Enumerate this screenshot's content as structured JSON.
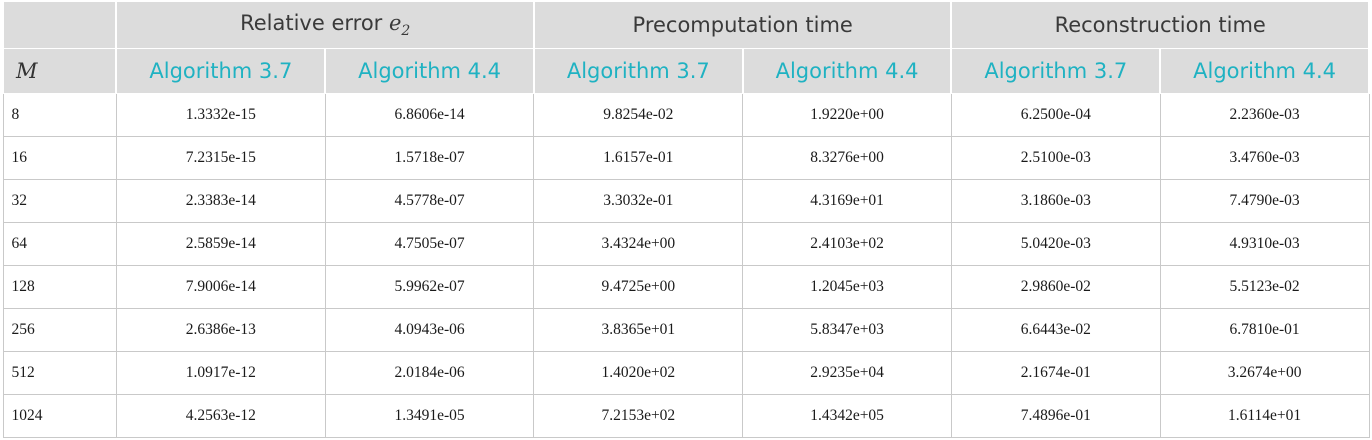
{
  "table": {
    "group_headers": {
      "relative_error_prefix": "Relative error",
      "relative_error_symbol": "e",
      "relative_error_subscript": "2",
      "precomputation": "Precomputation time",
      "reconstruction": "Reconstruction time"
    },
    "sub_headers": {
      "m": "M",
      "cols": [
        "Algorithm 3.7",
        "Algorithm 4.4",
        "Algorithm 3.7",
        "Algorithm 4.4",
        "Algorithm 3.7",
        "Algorithm 4.4"
      ]
    },
    "rows": [
      {
        "m": "8",
        "err_a37": "1.3332e-15",
        "err_a44": "6.8606e-14",
        "pre_a37": "9.8254e-02",
        "pre_a44": "1.9220e+00",
        "rec_a37": "6.2500e-04",
        "rec_a44": "2.2360e-03"
      },
      {
        "m": "16",
        "err_a37": "7.2315e-15",
        "err_a44": "1.5718e-07",
        "pre_a37": "1.6157e-01",
        "pre_a44": "8.3276e+00",
        "rec_a37": "2.5100e-03",
        "rec_a44": "3.4760e-03"
      },
      {
        "m": "32",
        "err_a37": "2.3383e-14",
        "err_a44": "4.5778e-07",
        "pre_a37": "3.3032e-01",
        "pre_a44": "4.3169e+01",
        "rec_a37": "3.1860e-03",
        "rec_a44": "7.4790e-03"
      },
      {
        "m": "64",
        "err_a37": "2.5859e-14",
        "err_a44": "4.7505e-07",
        "pre_a37": "3.4324e+00",
        "pre_a44": "2.4103e+02",
        "rec_a37": "5.0420e-03",
        "rec_a44": "4.9310e-03"
      },
      {
        "m": "128",
        "err_a37": "7.9006e-14",
        "err_a44": "5.9962e-07",
        "pre_a37": "9.4725e+00",
        "pre_a44": "1.2045e+03",
        "rec_a37": "2.9860e-02",
        "rec_a44": "5.5123e-02"
      },
      {
        "m": "256",
        "err_a37": "2.6386e-13",
        "err_a44": "4.0943e-06",
        "pre_a37": "3.8365e+01",
        "pre_a44": "5.8347e+03",
        "rec_a37": "6.6443e-02",
        "rec_a44": "6.7810e-01"
      },
      {
        "m": "512",
        "err_a37": "1.0917e-12",
        "err_a44": "2.0184e-06",
        "pre_a37": "1.4020e+02",
        "pre_a44": "2.9235e+04",
        "rec_a37": "2.1674e-01",
        "rec_a44": "3.2674e+00"
      },
      {
        "m": "1024",
        "err_a37": "4.2563e-12",
        "err_a44": "1.3491e-05",
        "pre_a37": "7.2153e+02",
        "pre_a44": "1.4342e+05",
        "rec_a37": "7.4896e-01",
        "rec_a44": "1.6114e+01"
      }
    ]
  },
  "colors": {
    "header_bg": "#dcdcdc",
    "header_text": "#3a3a3a",
    "accent_teal": "#1fb2c2",
    "border": "#c9c9c9"
  }
}
